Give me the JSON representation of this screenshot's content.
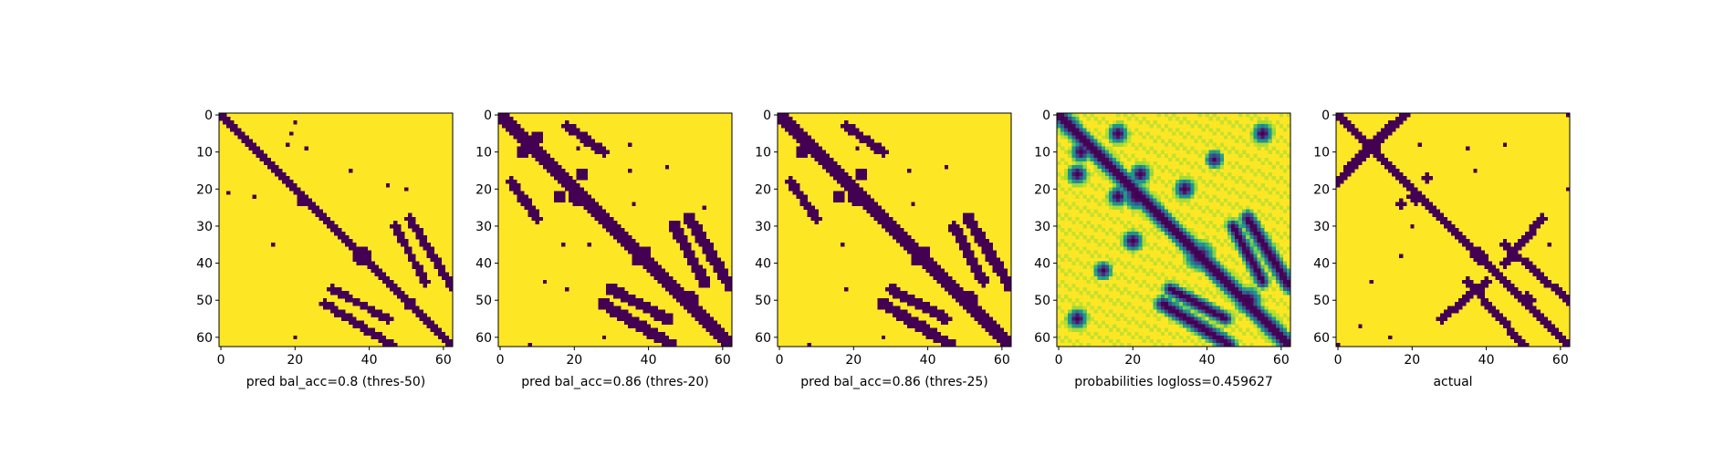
{
  "chart_data": [
    {
      "type": "heatmap",
      "title": "pred bal_acc=0.8 (thres-50)",
      "grid_size": 63,
      "xticks": [
        0,
        20,
        40,
        60
      ],
      "yticks": [
        0,
        10,
        20,
        30,
        40,
        50,
        60
      ],
      "xlim": [
        0,
        62
      ],
      "ylim": [
        0,
        62
      ],
      "colormap": "viridis-binary",
      "band_halfwidth": 1.2,
      "blobs": [
        {
          "center": [
            3,
            3
          ],
          "radius": 1.3
        },
        {
          "center": [
            23,
            22
          ],
          "radius": 2.2
        },
        {
          "center": [
            38,
            38
          ],
          "radius": 3
        },
        {
          "center": [
            51,
            51
          ],
          "radius": 2.2
        }
      ],
      "arcs": [
        {
          "from": [
            28,
            51
          ],
          "to": [
            46,
            62
          ],
          "width": 1.1
        },
        {
          "from": [
            51,
            28
          ],
          "to": [
            62,
            46
          ],
          "width": 1.1
        },
        {
          "from": [
            30,
            47
          ],
          "to": [
            45,
            55
          ],
          "width": 1.0
        },
        {
          "from": [
            47,
            30
          ],
          "to": [
            55,
            45
          ],
          "width": 1.0
        }
      ],
      "spots": [
        [
          2,
          20
        ],
        [
          5,
          19
        ],
        [
          8,
          18
        ],
        [
          9,
          23
        ],
        [
          15,
          35
        ],
        [
          20,
          50
        ],
        [
          21,
          2
        ],
        [
          22,
          9
        ],
        [
          35,
          14
        ],
        [
          55,
          46
        ],
        [
          60,
          20
        ],
        [
          19,
          45
        ]
      ]
    },
    {
      "type": "heatmap",
      "title": "pred bal_acc=0.86 (thres-20)",
      "grid_size": 63,
      "xticks": [
        0,
        20,
        40,
        60
      ],
      "yticks": [
        0,
        10,
        20,
        30,
        40,
        50,
        60
      ],
      "xlim": [
        0,
        62
      ],
      "ylim": [
        0,
        62
      ],
      "colormap": "viridis-binary",
      "band_halfwidth": 2.2,
      "blobs": [
        {
          "center": [
            3,
            3
          ],
          "radius": 2.5
        },
        {
          "center": [
            10,
            6
          ],
          "radius": 2.2
        },
        {
          "center": [
            6,
            10
          ],
          "radius": 2.2
        },
        {
          "center": [
            22,
            21
          ],
          "radius": 3.5
        },
        {
          "center": [
            38,
            38
          ],
          "radius": 4
        },
        {
          "center": [
            50,
            51
          ],
          "radius": 3.5
        },
        {
          "center": [
            16,
            22
          ],
          "radius": 2
        },
        {
          "center": [
            22,
            16
          ],
          "radius": 2
        }
      ],
      "arcs": [
        {
          "from": [
            28,
            51
          ],
          "to": [
            46,
            62
          ],
          "width": 1.8
        },
        {
          "from": [
            51,
            28
          ],
          "to": [
            62,
            46
          ],
          "width": 1.8
        },
        {
          "from": [
            30,
            47
          ],
          "to": [
            45,
            55
          ],
          "width": 1.6
        },
        {
          "from": [
            47,
            30
          ],
          "to": [
            55,
            45
          ],
          "width": 1.6
        },
        {
          "from": [
            3,
            18
          ],
          "to": [
            10,
            28
          ],
          "width": 1.4
        },
        {
          "from": [
            18,
            3
          ],
          "to": [
            28,
            10
          ],
          "width": 1.4
        }
      ],
      "spots": [
        [
          7,
          22
        ],
        [
          8,
          35
        ],
        [
          15,
          35
        ],
        [
          9,
          21
        ],
        [
          14,
          45
        ],
        [
          25,
          55
        ],
        [
          24,
          36
        ],
        [
          35,
          17
        ],
        [
          35,
          24
        ],
        [
          45,
          12
        ],
        [
          47,
          18
        ],
        [
          62,
          8
        ],
        [
          60,
          28
        ]
      ]
    },
    {
      "type": "heatmap",
      "title": "pred bal_acc=0.86 (thres-25)",
      "grid_size": 63,
      "xticks": [
        0,
        20,
        40,
        60
      ],
      "yticks": [
        0,
        10,
        20,
        30,
        40,
        50,
        60
      ],
      "xlim": [
        0,
        62
      ],
      "ylim": [
        0,
        62
      ],
      "colormap": "viridis-binary",
      "band_halfwidth": 2.0,
      "blobs": [
        {
          "center": [
            3,
            3
          ],
          "radius": 2.3
        },
        {
          "center": [
            10,
            6
          ],
          "radius": 2
        },
        {
          "center": [
            22,
            21
          ],
          "radius": 3.3
        },
        {
          "center": [
            38,
            38
          ],
          "radius": 3.8
        },
        {
          "center": [
            50,
            51
          ],
          "radius": 3.3
        },
        {
          "center": [
            16,
            22
          ],
          "radius": 1.7
        },
        {
          "center": [
            22,
            16
          ],
          "radius": 1.7
        }
      ],
      "arcs": [
        {
          "from": [
            28,
            51
          ],
          "to": [
            46,
            62
          ],
          "width": 1.7
        },
        {
          "from": [
            51,
            28
          ],
          "to": [
            62,
            46
          ],
          "width": 1.7
        },
        {
          "from": [
            30,
            47
          ],
          "to": [
            45,
            55
          ],
          "width": 1.5
        },
        {
          "from": [
            47,
            30
          ],
          "to": [
            55,
            45
          ],
          "width": 1.5
        },
        {
          "from": [
            3,
            18
          ],
          "to": [
            10,
            28
          ],
          "width": 1.2
        },
        {
          "from": [
            18,
            3
          ],
          "to": [
            28,
            10
          ],
          "width": 1.2
        }
      ],
      "spots": [
        [
          7,
          22
        ],
        [
          15,
          35
        ],
        [
          9,
          21
        ],
        [
          14,
          45
        ],
        [
          24,
          36
        ],
        [
          35,
          17
        ],
        [
          47,
          18
        ],
        [
          62,
          8
        ],
        [
          60,
          28
        ]
      ]
    },
    {
      "type": "heatmap",
      "title": "probabilities logloss=0.459627",
      "grid_size": 63,
      "xticks": [
        0,
        20,
        40,
        60
      ],
      "yticks": [
        0,
        10,
        20,
        30,
        40,
        50,
        60
      ],
      "xlim": [
        0,
        62
      ],
      "ylim": [
        0,
        62
      ],
      "colormap": "viridis",
      "continuous": true,
      "band_halfwidth": 2.6,
      "blobs": [
        {
          "center": [
            3,
            3
          ],
          "radius": 3
        },
        {
          "center": [
            10,
            6
          ],
          "radius": 3
        },
        {
          "center": [
            22,
            21
          ],
          "radius": 4
        },
        {
          "center": [
            38,
            38
          ],
          "radius": 4.5
        },
        {
          "center": [
            50,
            51
          ],
          "radius": 4
        },
        {
          "center": [
            16,
            22
          ],
          "radius": 3
        },
        {
          "center": [
            22,
            16
          ],
          "radius": 3
        },
        {
          "center": [
            5,
            16
          ],
          "radius": 3
        },
        {
          "center": [
            16,
            5
          ],
          "radius": 3
        },
        {
          "center": [
            5,
            55
          ],
          "radius": 3
        },
        {
          "center": [
            55,
            5
          ],
          "radius": 3
        },
        {
          "center": [
            20,
            34
          ],
          "radius": 3
        },
        {
          "center": [
            34,
            20
          ],
          "radius": 3
        },
        {
          "center": [
            12,
            42
          ],
          "radius": 2.5
        },
        {
          "center": [
            42,
            12
          ],
          "radius": 2.5
        }
      ],
      "arcs": [
        {
          "from": [
            28,
            51
          ],
          "to": [
            46,
            62
          ],
          "width": 2.3
        },
        {
          "from": [
            51,
            28
          ],
          "to": [
            62,
            46
          ],
          "width": 2.3
        },
        {
          "from": [
            30,
            47
          ],
          "to": [
            45,
            55
          ],
          "width": 2.0
        },
        {
          "from": [
            47,
            30
          ],
          "to": [
            55,
            45
          ],
          "width": 2.0
        }
      ],
      "spots": []
    },
    {
      "type": "heatmap",
      "title": "actual",
      "grid_size": 63,
      "xticks": [
        0,
        20,
        40,
        60
      ],
      "yticks": [
        0,
        10,
        20,
        30,
        40,
        50,
        60
      ],
      "xlim": [
        0,
        62
      ],
      "ylim": [
        0,
        62
      ],
      "colormap": "viridis-binary",
      "band_halfwidth": 1.3,
      "blobs": [
        {
          "center": [
            8,
            10
          ],
          "radius": 2.4
        },
        {
          "center": [
            22,
            21
          ],
          "radius": 2.8
        },
        {
          "center": [
            38,
            38
          ],
          "radius": 2.6
        },
        {
          "center": [
            50,
            51
          ],
          "radius": 2.6
        },
        {
          "center": [
            17,
            24
          ],
          "radius": 1.5
        },
        {
          "center": [
            24,
            17
          ],
          "radius": 1.5
        }
      ],
      "arcs": [
        {
          "from": [
            0,
            18
          ],
          "to": [
            14,
            3
          ],
          "width": 1.2
        },
        {
          "from": [
            18,
            0
          ],
          "to": [
            3,
            14
          ],
          "width": 1.2
        },
        {
          "from": [
            50,
            62
          ],
          "to": [
            35,
            45
          ],
          "width": 1.0
        },
        {
          "from": [
            62,
            50
          ],
          "to": [
            45,
            35
          ],
          "width": 1.0
        },
        {
          "from": [
            45,
            40
          ],
          "to": [
            55,
            28
          ],
          "width": 1.0
        },
        {
          "from": [
            40,
            45
          ],
          "to": [
            28,
            55
          ],
          "width": 1.0
        }
      ],
      "spots": [
        [
          8,
          22
        ],
        [
          9,
          35
        ],
        [
          8,
          45
        ],
        [
          35,
          57
        ],
        [
          38,
          17
        ],
        [
          45,
          9
        ],
        [
          57,
          6
        ],
        [
          0,
          62
        ],
        [
          60,
          14
        ],
        [
          62,
          0
        ],
        [
          20,
          62
        ],
        [
          15,
          37
        ],
        [
          30,
          20
        ]
      ]
    }
  ]
}
